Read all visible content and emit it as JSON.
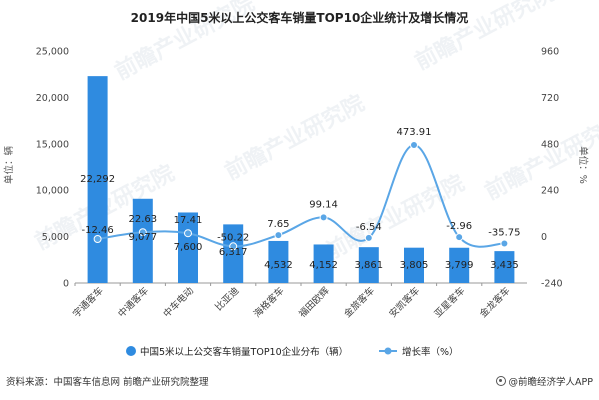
{
  "chart_data": {
    "type": "bar",
    "title": "2019年中国5米以上公交客车销量TOP10企业统计及增长情况",
    "categories": [
      "宇通客车",
      "中通客车",
      "中车电动",
      "比亚迪",
      "海格客车",
      "福田欧辉",
      "金旅客车",
      "安凯客车",
      "亚星客车",
      "金龙客车"
    ],
    "series": [
      {
        "name": "中国5米以上公交客车销量TOP10企业分布（辆）",
        "type": "bar",
        "axis": "left",
        "color": "#2f8be0",
        "values": [
          22292,
          9077,
          7600,
          6317,
          4532,
          4152,
          3861,
          3805,
          3799,
          3435
        ],
        "labels": [
          "22,292",
          "9,077",
          "7,600",
          "6,317",
          "4,532",
          "4,152",
          "3,861",
          "3,805",
          "3,799",
          "3,435"
        ]
      },
      {
        "name": "增长率（%）",
        "type": "line",
        "axis": "right",
        "color": "#5aa6e6",
        "values": [
          -12.46,
          22.63,
          17.41,
          -50.22,
          7.65,
          99.14,
          -6.54,
          473.91,
          -2.96,
          -35.75
        ],
        "labels": [
          "-12.46",
          "22.63",
          "17.41",
          "-50.22",
          "7.65",
          "99.14",
          "-6.54",
          "473.91",
          "-2.96",
          "-35.75"
        ]
      }
    ],
    "ylabel_left": "单位：辆",
    "ylabel_right": "单位：%",
    "ylim_left": [
      0,
      25000
    ],
    "ylim_right": [
      -240,
      960
    ],
    "yticks_left": [
      "0",
      "5,000",
      "10,000",
      "15,000",
      "20,000",
      "25,000"
    ],
    "yticks_right": [
      "-240",
      "0",
      "240",
      "480",
      "720",
      "960"
    ],
    "legend_position": "bottom",
    "grid": false
  },
  "footer": {
    "source": "资料来源：中国客车信息网 前瞻产业研究院整理",
    "brand": "@前瞻经济学人APP"
  },
  "watermark": "前瞻产业研究院"
}
